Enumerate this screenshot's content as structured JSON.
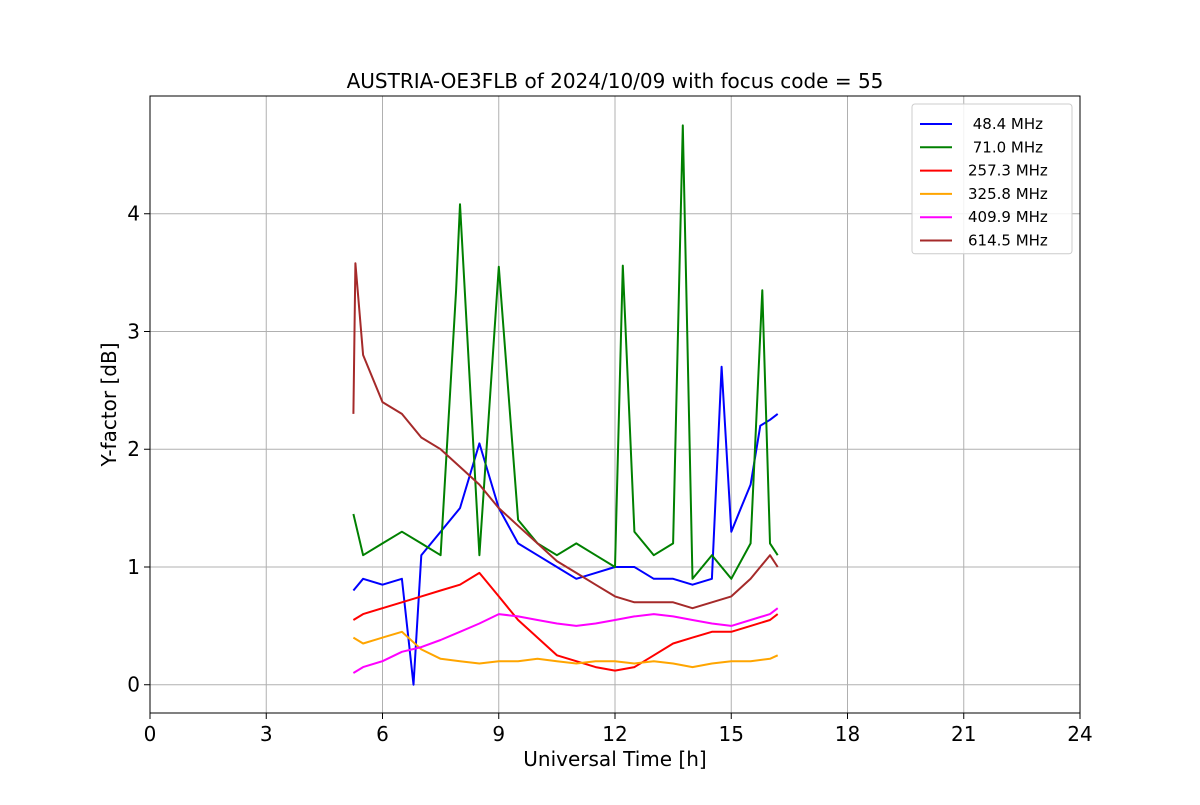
{
  "chart_data": {
    "type": "line",
    "title": "AUSTRIA-OE3FLB of 2024/10/09 with focus code = 55",
    "xlabel": "Universal Time [h]",
    "ylabel": "Y-factor [dB]",
    "xlim": [
      0,
      24
    ],
    "ylim": [
      -0.24,
      5.0
    ],
    "xticks": [
      0,
      3,
      6,
      9,
      12,
      15,
      18,
      21,
      24
    ],
    "yticks": [
      0,
      1,
      2,
      3,
      4
    ],
    "grid": true,
    "legend_position": "top-right",
    "series": [
      {
        "name": " 48.4 MHz",
        "color": "#0000ff",
        "x": [
          5.25,
          5.5,
          6.0,
          6.5,
          6.8,
          7.0,
          7.5,
          8.0,
          8.5,
          9.0,
          9.5,
          10.0,
          10.5,
          11.0,
          11.5,
          12.0,
          12.5,
          13.0,
          13.5,
          14.0,
          14.5,
          14.75,
          15.0,
          15.25,
          15.5,
          15.75,
          16.0,
          16.2
        ],
        "y": [
          0.8,
          0.9,
          0.85,
          0.9,
          0.0,
          1.1,
          1.3,
          1.5,
          2.05,
          1.5,
          1.2,
          1.1,
          1.0,
          0.9,
          0.95,
          1.0,
          1.0,
          0.9,
          0.9,
          0.85,
          0.9,
          2.7,
          1.3,
          1.5,
          1.7,
          2.2,
          2.25,
          2.3
        ]
      },
      {
        "name": " 71.0 MHz",
        "color": "#008000",
        "x": [
          5.25,
          5.5,
          6.0,
          6.5,
          7.0,
          7.5,
          7.9,
          8.0,
          8.5,
          9.0,
          9.5,
          10.0,
          10.5,
          11.0,
          11.5,
          12.0,
          12.2,
          12.5,
          13.0,
          13.5,
          13.75,
          14.0,
          14.5,
          15.0,
          15.5,
          15.8,
          16.0,
          16.2
        ],
        "y": [
          1.45,
          1.1,
          1.2,
          1.3,
          1.2,
          1.1,
          3.35,
          4.08,
          1.1,
          3.55,
          1.4,
          1.2,
          1.1,
          1.2,
          1.1,
          1.0,
          3.56,
          1.3,
          1.1,
          1.2,
          4.75,
          0.9,
          1.1,
          0.9,
          1.2,
          3.35,
          1.2,
          1.1
        ]
      },
      {
        "name": "257.3 MHz",
        "color": "#ff0000",
        "x": [
          5.25,
          5.5,
          6.0,
          6.5,
          7.0,
          7.5,
          8.0,
          8.5,
          9.0,
          9.5,
          10.0,
          10.5,
          11.0,
          11.5,
          12.0,
          12.5,
          13.0,
          13.5,
          14.0,
          14.5,
          15.0,
          15.5,
          16.0,
          16.2
        ],
        "y": [
          0.55,
          0.6,
          0.65,
          0.7,
          0.75,
          0.8,
          0.85,
          0.95,
          0.75,
          0.55,
          0.4,
          0.25,
          0.2,
          0.15,
          0.12,
          0.15,
          0.25,
          0.35,
          0.4,
          0.45,
          0.45,
          0.5,
          0.55,
          0.6
        ]
      },
      {
        "name": "325.8 MHz",
        "color": "#ffa500",
        "x": [
          5.25,
          5.5,
          6.0,
          6.5,
          7.0,
          7.5,
          8.0,
          8.5,
          9.0,
          9.5,
          10.0,
          10.5,
          11.0,
          11.5,
          12.0,
          12.5,
          13.0,
          13.5,
          14.0,
          14.5,
          15.0,
          15.5,
          16.0,
          16.2
        ],
        "y": [
          0.4,
          0.35,
          0.4,
          0.45,
          0.3,
          0.22,
          0.2,
          0.18,
          0.2,
          0.2,
          0.22,
          0.2,
          0.18,
          0.2,
          0.2,
          0.18,
          0.2,
          0.18,
          0.15,
          0.18,
          0.2,
          0.2,
          0.22,
          0.25
        ]
      },
      {
        "name": "409.9 MHz",
        "color": "#ff00ff",
        "x": [
          5.25,
          5.5,
          6.0,
          6.5,
          7.0,
          7.5,
          8.0,
          8.5,
          9.0,
          9.5,
          10.0,
          10.5,
          11.0,
          11.5,
          12.0,
          12.5,
          13.0,
          13.5,
          14.0,
          14.5,
          15.0,
          15.5,
          16.0,
          16.2
        ],
        "y": [
          0.1,
          0.15,
          0.2,
          0.28,
          0.32,
          0.38,
          0.45,
          0.52,
          0.6,
          0.58,
          0.55,
          0.52,
          0.5,
          0.52,
          0.55,
          0.58,
          0.6,
          0.58,
          0.55,
          0.52,
          0.5,
          0.55,
          0.6,
          0.65
        ]
      },
      {
        "name": "614.5 MHz",
        "color": "#a52a2a",
        "x": [
          5.25,
          5.3,
          5.5,
          6.0,
          6.5,
          7.0,
          7.5,
          8.0,
          8.5,
          9.0,
          9.5,
          10.0,
          10.5,
          11.0,
          11.5,
          12.0,
          12.5,
          13.0,
          13.5,
          14.0,
          14.5,
          15.0,
          15.5,
          16.0,
          16.2
        ],
        "y": [
          2.3,
          3.58,
          2.8,
          2.4,
          2.3,
          2.1,
          2.0,
          1.85,
          1.7,
          1.5,
          1.35,
          1.2,
          1.05,
          0.95,
          0.85,
          0.75,
          0.7,
          0.7,
          0.7,
          0.65,
          0.7,
          0.75,
          0.9,
          1.1,
          1.0
        ]
      }
    ]
  }
}
